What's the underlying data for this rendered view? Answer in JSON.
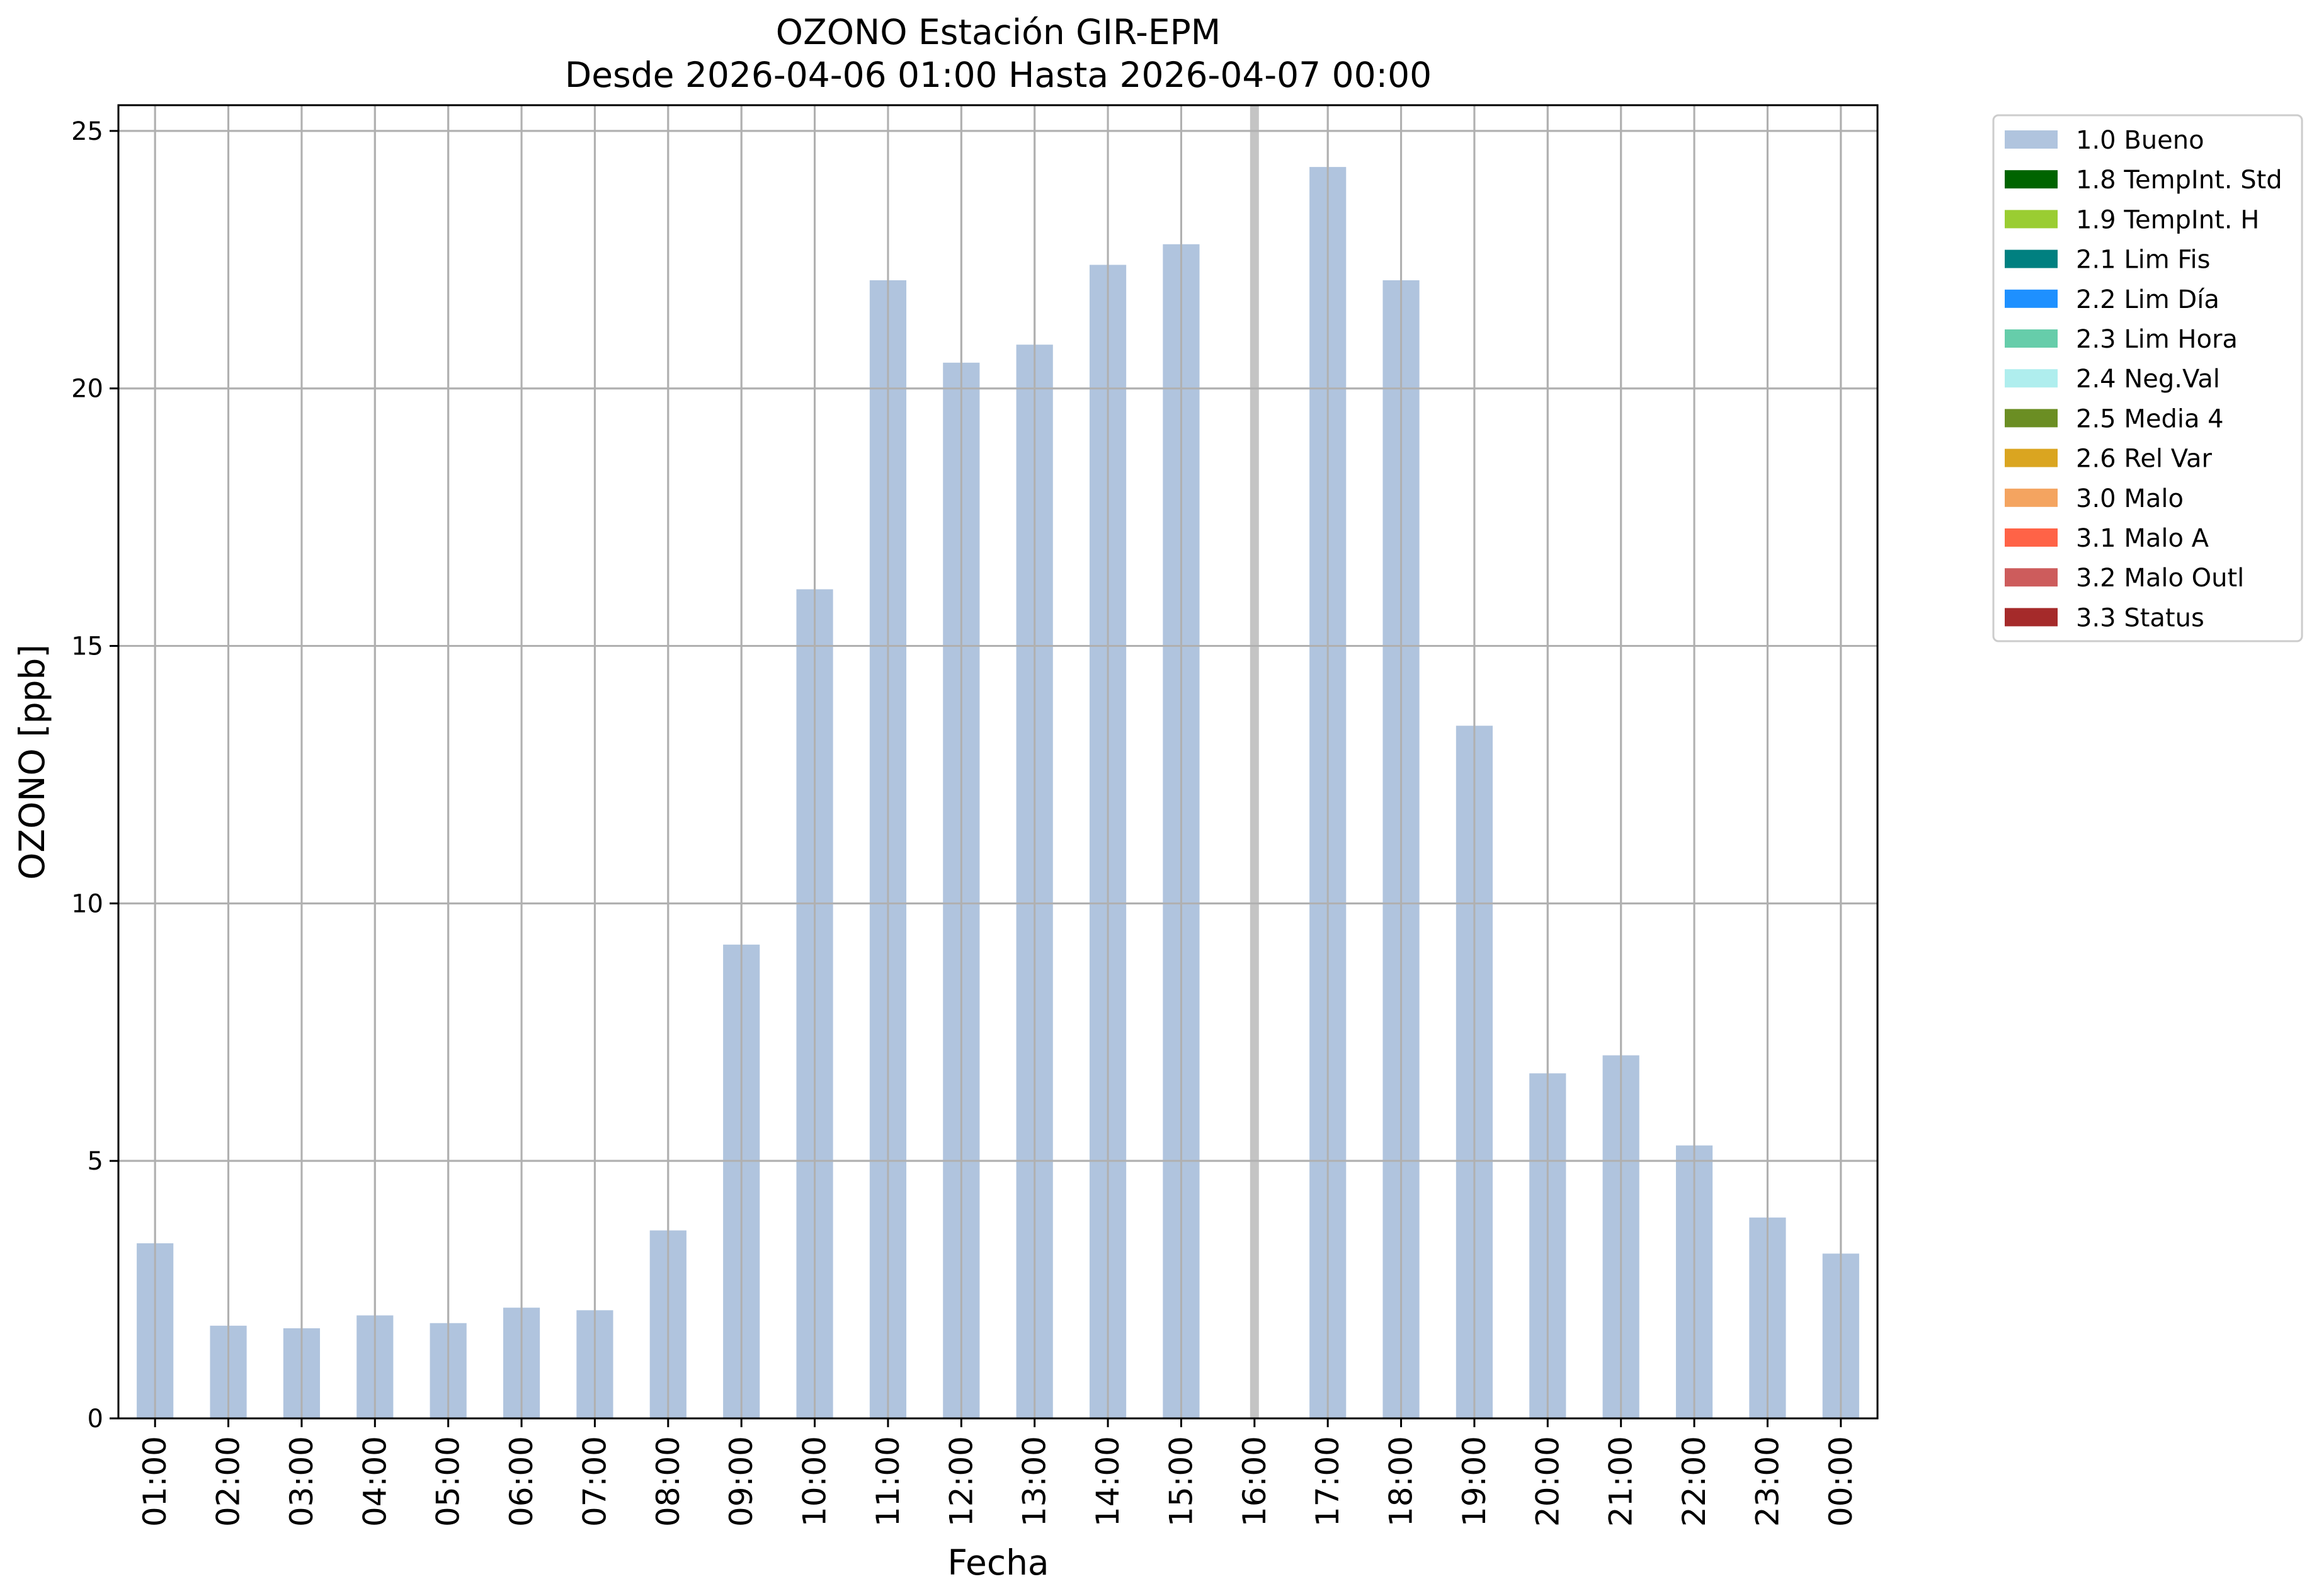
{
  "chart_data": {
    "type": "bar",
    "title": "OZONO Estación GIR-EPM",
    "subtitle": "Desde 2026-04-06 01:00 Hasta 2026-04-07 00:00",
    "xlabel": "Fecha",
    "ylabel": "OZONO [ppb]",
    "ylim": [
      0,
      25.5
    ],
    "yticks": [
      0,
      5,
      10,
      15,
      20,
      25
    ],
    "ytick_labels": [
      "0",
      "5",
      "10",
      "15",
      "20",
      "25"
    ],
    "grid": true,
    "legend_position": "outside right",
    "categories": [
      "01:00",
      "02:00",
      "03:00",
      "04:00",
      "05:00",
      "06:00",
      "07:00",
      "08:00",
      "09:00",
      "10:00",
      "11:00",
      "12:00",
      "13:00",
      "14:00",
      "15:00",
      "16:00",
      "17:00",
      "18:00",
      "19:00",
      "20:00",
      "21:00",
      "22:00",
      "23:00",
      "00:00"
    ],
    "series": [
      {
        "name": "1.0 Bueno",
        "color": "#b0c4de",
        "values": [
          3.4,
          1.8,
          1.75,
          2.0,
          1.85,
          2.15,
          2.1,
          3.65,
          9.2,
          16.1,
          22.1,
          20.5,
          20.85,
          22.4,
          22.8,
          null,
          24.3,
          22.1,
          13.45,
          6.7,
          7.05,
          5.3,
          3.9,
          3.2
        ]
      }
    ],
    "legend": [
      {
        "label": "1.0 Bueno",
        "color": "#b0c4de"
      },
      {
        "label": "1.8 TempInt. Std",
        "color": "#006400"
      },
      {
        "label": "1.9 TempInt. H",
        "color": "#9acd32"
      },
      {
        "label": "2.1 Lim Fis",
        "color": "#008080"
      },
      {
        "label": "2.2 Lim Día",
        "color": "#1e90ff"
      },
      {
        "label": "2.3 Lim Hora",
        "color": "#66cdaa"
      },
      {
        "label": "2.4 Neg.Val",
        "color": "#afeeee"
      },
      {
        "label": "2.5 Media 4",
        "color": "#6b8e23"
      },
      {
        "label": "2.6 Rel Var",
        "color": "#daa520"
      },
      {
        "label": "3.0 Malo",
        "color": "#f4a460"
      },
      {
        "label": "3.1 Malo A",
        "color": "#ff6347"
      },
      {
        "label": "3.2 Malo Outl",
        "color": "#cd5c5c"
      },
      {
        "label": "3.3 Status",
        "color": "#a52a2a"
      }
    ],
    "highlight_category": "16:00"
  }
}
